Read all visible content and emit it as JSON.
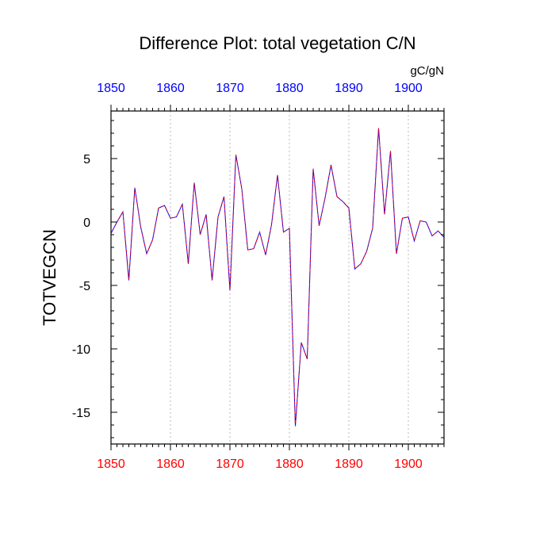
{
  "chart_data": {
    "type": "line",
    "title": "Difference Plot: total vegetation C/N",
    "ylabel": "TOTVEGCN",
    "units": "gC/gN",
    "xlim": [
      1850,
      1906
    ],
    "ylim": [
      -17.5,
      8.75
    ],
    "x_ticks": [
      "1850",
      "1860",
      "1870",
      "1880",
      "1890",
      "1900"
    ],
    "y_ticks": [
      "5",
      "0",
      "-5",
      "-10",
      "-15"
    ],
    "y_tick_values": [
      5,
      0,
      -5,
      -10,
      -15
    ],
    "x_tick_values": [
      1850,
      1860,
      1870,
      1880,
      1890,
      1900
    ],
    "grid": "vertical dotted at major x ticks",
    "colors": {
      "line_a": "#0000ff",
      "line_b": "#ff0000",
      "top_axis_labels": "#0000ff",
      "bottom_axis_labels": "#ff0000",
      "grid": "#bbbbbb"
    },
    "series": [
      {
        "x": [
          1850,
          1851,
          1852,
          1853,
          1854,
          1855,
          1856,
          1857,
          1858,
          1859,
          1860,
          1861,
          1862,
          1863,
          1864,
          1865,
          1866,
          1867,
          1868,
          1869,
          1870,
          1871,
          1872,
          1873,
          1874,
          1875,
          1876,
          1877,
          1878,
          1879,
          1880,
          1881,
          1882,
          1883,
          1884,
          1885,
          1886,
          1887,
          1888,
          1889,
          1890,
          1891,
          1892,
          1893,
          1894,
          1895,
          1896,
          1897,
          1898,
          1899,
          1900,
          1901,
          1902,
          1903,
          1904,
          1905,
          1906
        ],
        "values": [
          -0.9,
          0.0,
          0.8,
          -4.6,
          2.7,
          -0.4,
          -2.5,
          -1.4,
          1.1,
          1.3,
          0.3,
          0.4,
          1.4,
          -3.3,
          3.1,
          -1.0,
          0.6,
          -4.6,
          0.4,
          2.0,
          -5.4,
          5.3,
          2.6,
          -2.2,
          -2.1,
          -0.8,
          -2.6,
          -0.2,
          3.7,
          -0.8,
          -0.5,
          -16.1,
          -9.5,
          -10.8,
          4.2,
          -0.3,
          1.9,
          4.5,
          2.0,
          1.6,
          1.1,
          -3.7,
          -3.3,
          -2.3,
          -0.5,
          7.4,
          0.6,
          5.6,
          -2.5,
          0.3,
          0.4,
          -1.5,
          0.1,
          0.0,
          -1.1,
          -0.7,
          -1.2
        ]
      }
    ]
  }
}
